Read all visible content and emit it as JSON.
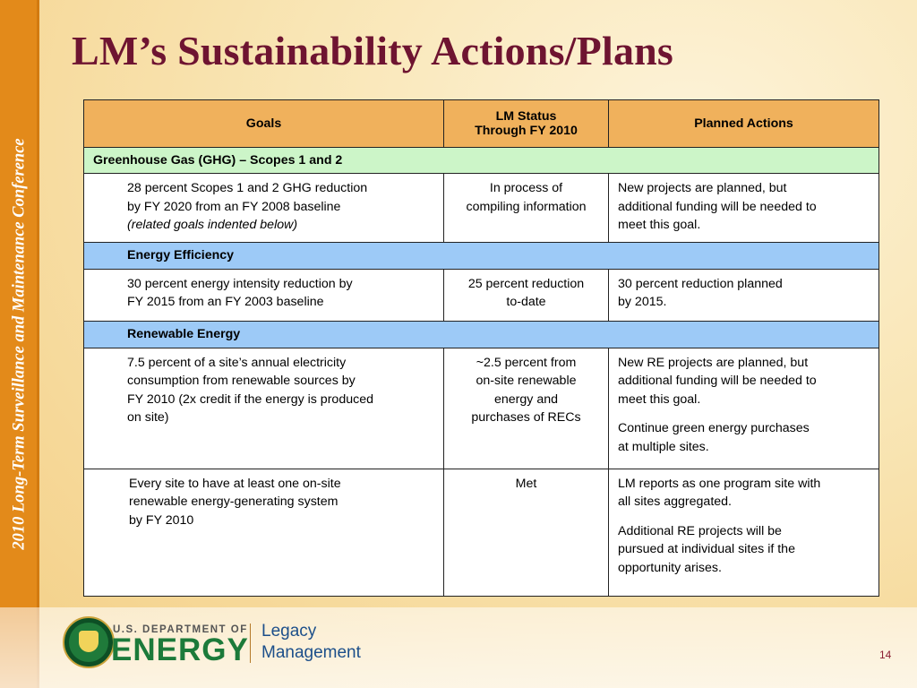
{
  "sidebar": {
    "text": "2010 Long-Term Surveillance and Maintenance Conference"
  },
  "slide": {
    "title": "LM’s Sustainability Actions/Plans",
    "page_number": "14"
  },
  "table": {
    "headers": {
      "goals": "Goals",
      "status_line1": "LM Status",
      "status_line2": "Through FY 2010",
      "actions": "Planned Actions"
    },
    "section_ghg": "Greenhouse Gas  (GHG) – Scopes 1 and 2",
    "row1": {
      "goal_l1": "28 percent Scopes 1 and 2 GHG reduction",
      "goal_l2": "by FY 2020 from an FY 2008 baseline",
      "goal_note": "(related goals indented below)",
      "status_l1": "In process of",
      "status_l2": "compiling information",
      "actions_l1": "New projects are planned, but",
      "actions_l2": "additional funding will be needed to",
      "actions_l3": "meet this goal."
    },
    "section_ee": "Energy Efficiency",
    "row2": {
      "goal_l1": "30 percent energy intensity reduction by",
      "goal_l2": "FY 2015 from an FY 2003 baseline",
      "status_l1": "25 percent reduction",
      "status_l2": "to-date",
      "actions_l1": "30 percent reduction planned",
      "actions_l2": "by 2015."
    },
    "section_re": "Renewable Energy",
    "row3": {
      "goal_l1": "7.5 percent of a site’s annual electricity",
      "goal_l2": "consumption from renewable sources by",
      "goal_l3": "FY 2010 (2x credit if the energy is produced",
      "goal_l4": "on site)",
      "status_l1": "~2.5 percent from",
      "status_l2": "on-site renewable",
      "status_l3": "energy and",
      "status_l4": "purchases of RECs",
      "actions_p1_l1": "New RE projects are planned, but",
      "actions_p1_l2": "additional funding will be needed to",
      "actions_p1_l3": "meet this goal.",
      "actions_p2_l1": "Continue green energy purchases",
      "actions_p2_l2": "at multiple sites."
    },
    "row4": {
      "goal_l1": "Every site to have at least one on-site",
      "goal_l2": "renewable energy-generating system",
      "goal_l3": "by FY 2010",
      "status": "Met",
      "actions_p1_l1": "LM reports as one program site with",
      "actions_p1_l2": "all sites aggregated.",
      "actions_p2_l1": "Additional RE projects will be",
      "actions_p2_l2": "pursued at individual sites if the",
      "actions_p2_l3": "opportunity arises."
    }
  },
  "footer": {
    "dept_small": "U.S. DEPARTMENT OF",
    "dept_big": "ENERGY",
    "office_l1": "Legacy",
    "office_l2": "Management"
  },
  "colors": {
    "title": "#6e1431",
    "sidebar": "#e38a1a",
    "header_row": "#f0b15c",
    "section_green": "#ccf5c8",
    "section_blue": "#9dcaf7",
    "energy_green": "#1c7a3a",
    "legacy_blue": "#1c4f8a"
  }
}
